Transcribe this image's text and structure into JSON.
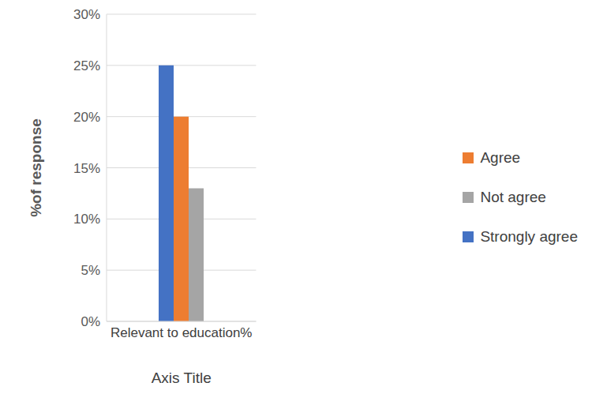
{
  "chart_data": {
    "type": "bar",
    "x_label": "Axis Title",
    "y_label": "%of response",
    "categories": [
      "Relevant to education%"
    ],
    "series": [
      {
        "name": "Strongly agree",
        "color": "#4472c4",
        "values": [
          25
        ]
      },
      {
        "name": "Agree",
        "color": "#ed7d31",
        "values": [
          20
        ]
      },
      {
        "name": "Not agree",
        "color": "#a5a5a5",
        "values": [
          13
        ]
      }
    ],
    "ylim": [
      0,
      30
    ],
    "yticks": [
      {
        "value": 0,
        "label": "0%"
      },
      {
        "value": 5,
        "label": "5%"
      },
      {
        "value": 10,
        "label": "10%"
      },
      {
        "value": 15,
        "label": "15%"
      },
      {
        "value": 20,
        "label": "20%"
      },
      {
        "value": 25,
        "label": "25%"
      },
      {
        "value": 30,
        "label": "30%"
      }
    ],
    "grid": true,
    "legend": "right"
  }
}
